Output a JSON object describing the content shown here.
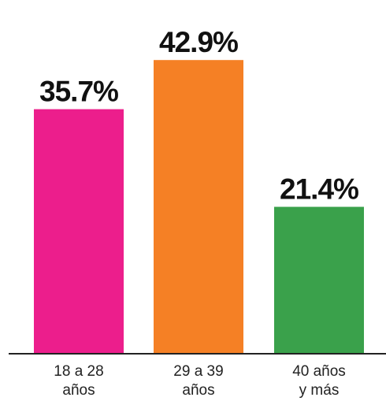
{
  "chart_data": {
    "type": "bar",
    "title": "",
    "xlabel": "",
    "ylabel": "",
    "ylim": [
      0,
      45
    ],
    "grid": false,
    "legend": "none",
    "categories": [
      [
        "18 a 28",
        "años"
      ],
      [
        "29 a 39",
        "años"
      ],
      [
        "40 años",
        "y más"
      ]
    ],
    "values": [
      35.7,
      42.9,
      21.4
    ],
    "value_labels": [
      "35.7%",
      "42.9%",
      "21.4%"
    ],
    "colors": [
      "#ec1e8c",
      "#f58025",
      "#3aa14b"
    ],
    "axis_color": "#222222"
  }
}
